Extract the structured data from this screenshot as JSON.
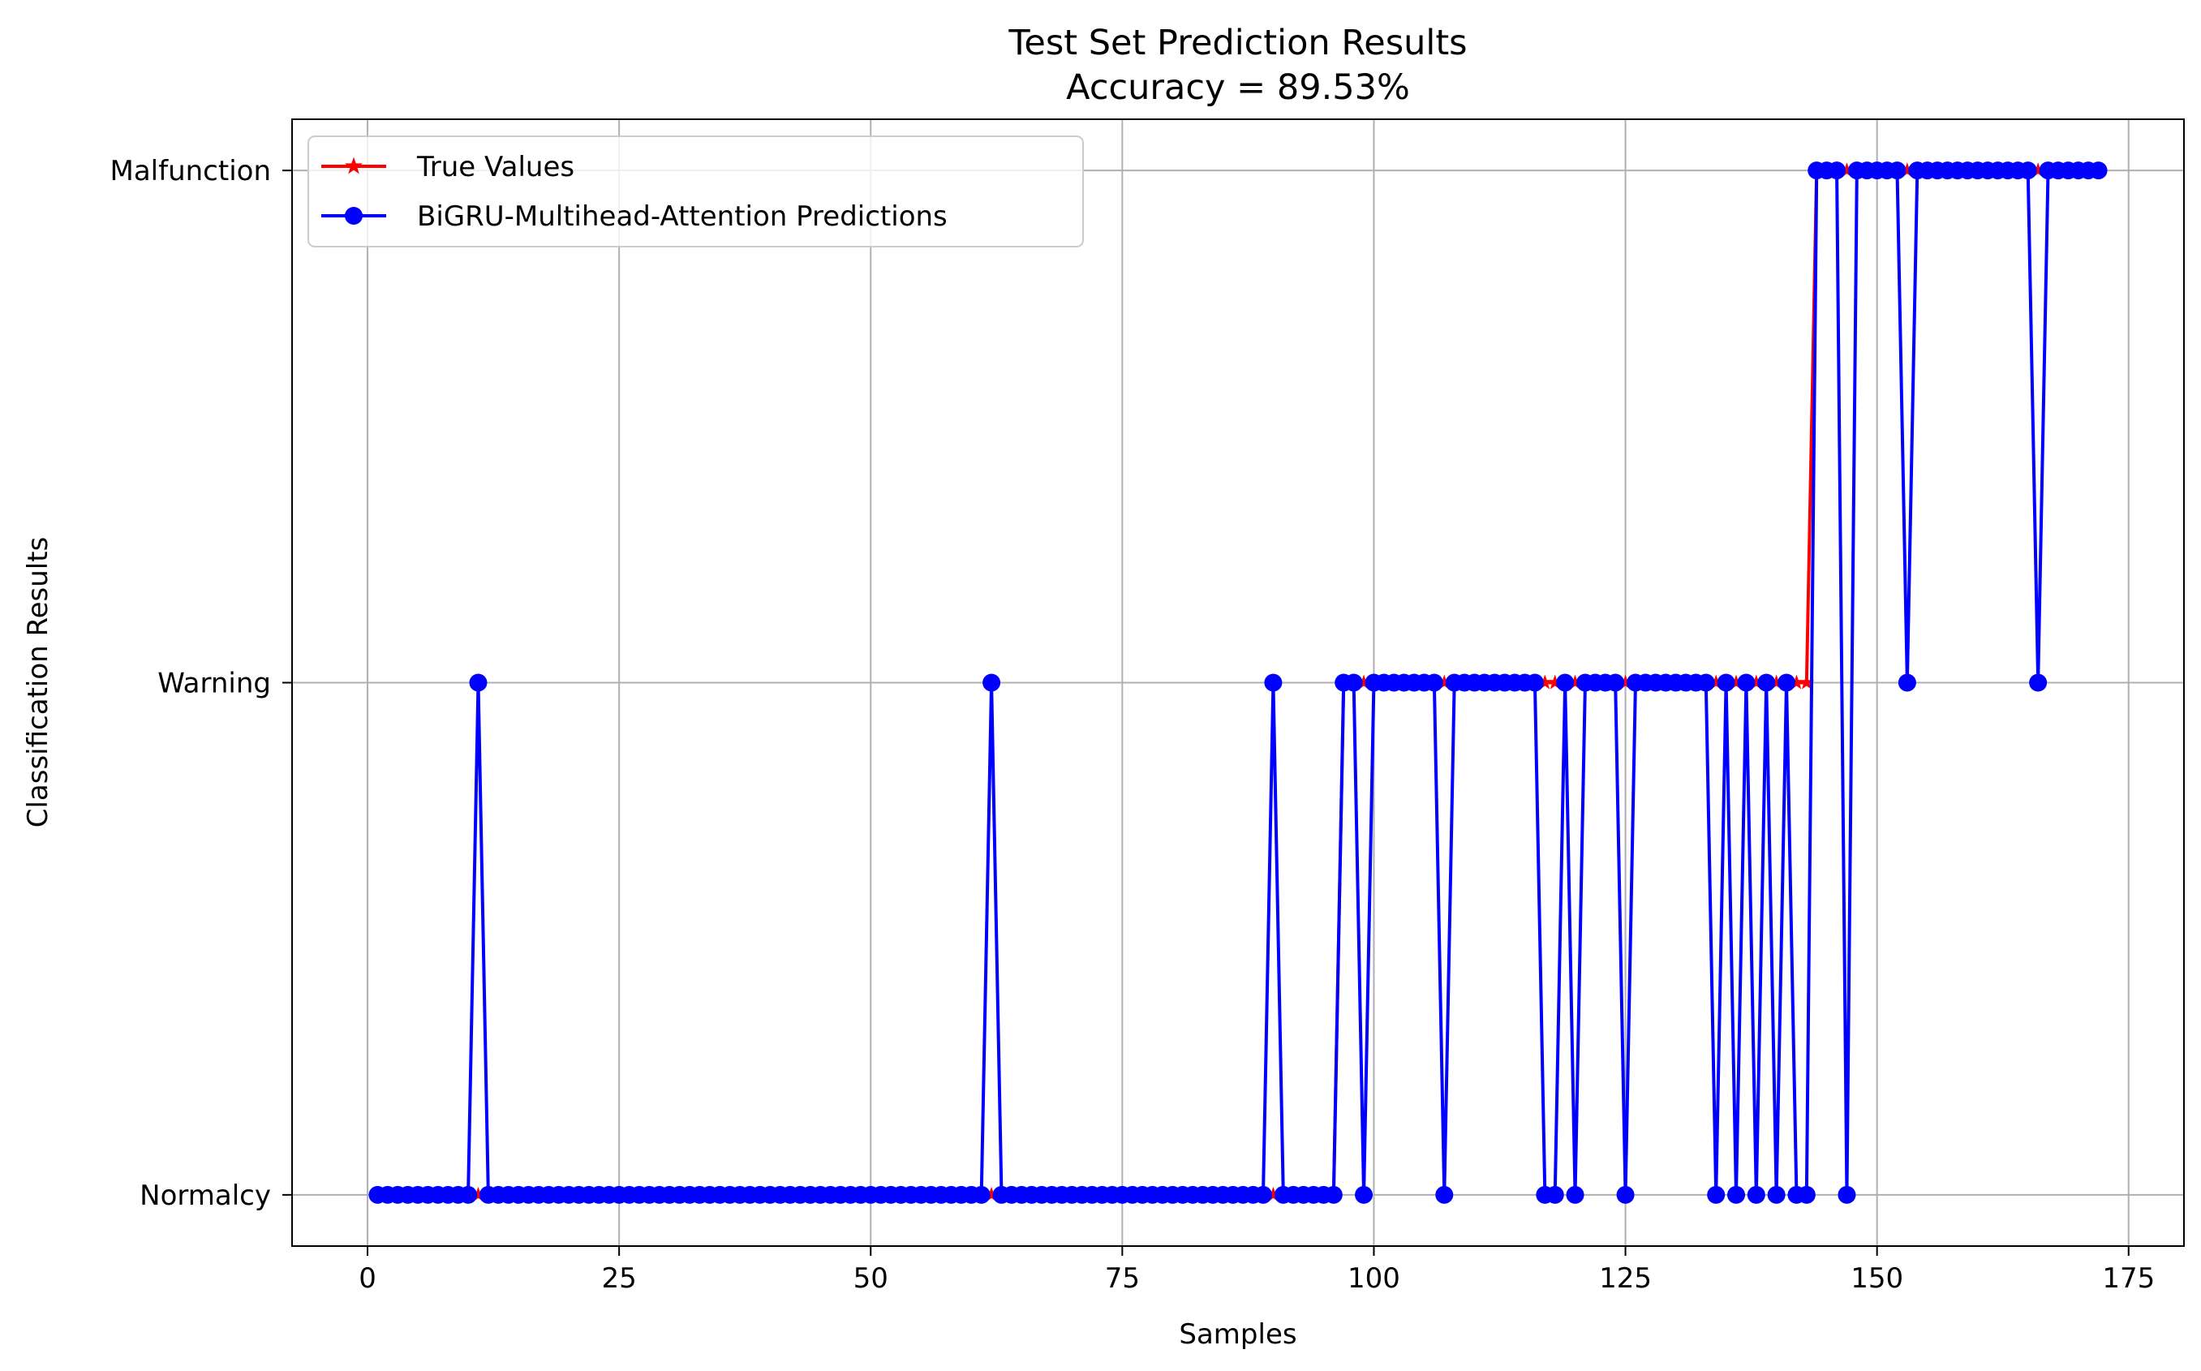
{
  "chart_data": {
    "type": "line",
    "title": "Test Set Prediction Results",
    "subtitle": "Accuracy = 89.53%",
    "xlabel": "Samples",
    "ylabel": "Classification Results",
    "xlim": [
      -7.5,
      180.5
    ],
    "ylim": [
      -0.1,
      2.1
    ],
    "x_ticks": [
      0,
      25,
      50,
      75,
      100,
      125,
      150,
      175
    ],
    "y_ticks": [
      0,
      1,
      2
    ],
    "y_tick_labels": [
      "Normalcy",
      "Warning",
      "Malfunction"
    ],
    "grid": true,
    "legend_position": "top-left",
    "x_start": 1,
    "series": [
      {
        "name": "True Values",
        "color": "#ff0000",
        "marker": "star",
        "values": [
          0,
          0,
          0,
          0,
          0,
          0,
          0,
          0,
          0,
          0,
          0,
          0,
          0,
          0,
          0,
          0,
          0,
          0,
          0,
          0,
          0,
          0,
          0,
          0,
          0,
          0,
          0,
          0,
          0,
          0,
          0,
          0,
          0,
          0,
          0,
          0,
          0,
          0,
          0,
          0,
          0,
          0,
          0,
          0,
          0,
          0,
          0,
          0,
          0,
          0,
          0,
          0,
          0,
          0,
          0,
          0,
          0,
          0,
          0,
          0,
          0,
          0,
          0,
          0,
          0,
          0,
          0,
          0,
          0,
          0,
          0,
          0,
          0,
          0,
          0,
          0,
          0,
          0,
          0,
          0,
          0,
          0,
          0,
          0,
          0,
          0,
          0,
          0,
          0,
          0,
          0,
          0,
          0,
          0,
          0,
          0,
          1,
          1,
          1,
          1,
          1,
          1,
          1,
          1,
          1,
          1,
          1,
          1,
          1,
          1,
          1,
          1,
          1,
          1,
          1,
          1,
          1,
          1,
          1,
          1,
          1,
          1,
          1,
          1,
          1,
          1,
          1,
          1,
          1,
          1,
          1,
          1,
          1,
          1,
          1,
          1,
          1,
          1,
          1,
          1,
          1,
          1,
          1,
          2,
          2,
          2,
          2,
          2,
          2,
          2,
          2,
          2,
          2,
          2,
          2,
          2,
          2,
          2,
          2,
          2,
          2,
          2,
          2,
          2,
          2,
          2,
          2,
          2,
          2,
          2
        ]
      },
      {
        "name": "BiGRU-Multihead-Attention Predictions",
        "color": "#0000ff",
        "marker": "circle",
        "values": [
          0,
          0,
          0,
          0,
          0,
          0,
          0,
          0,
          0,
          0,
          1,
          0,
          0,
          0,
          0,
          0,
          0,
          0,
          0,
          0,
          0,
          0,
          0,
          0,
          0,
          0,
          0,
          0,
          0,
          0,
          0,
          0,
          0,
          0,
          0,
          0,
          0,
          0,
          0,
          0,
          0,
          0,
          0,
          0,
          0,
          0,
          0,
          0,
          0,
          0,
          0,
          0,
          0,
          0,
          0,
          0,
          0,
          0,
          0,
          0,
          0,
          1,
          0,
          0,
          0,
          0,
          0,
          0,
          0,
          0,
          0,
          0,
          0,
          0,
          0,
          0,
          0,
          0,
          0,
          0,
          0,
          0,
          0,
          0,
          0,
          0,
          0,
          0,
          0,
          1,
          0,
          0,
          0,
          0,
          0,
          0,
          1,
          1,
          0,
          1,
          1,
          1,
          1,
          1,
          1,
          1,
          0,
          1,
          1,
          1,
          1,
          1,
          1,
          1,
          1,
          1,
          0,
          0,
          1,
          0,
          1,
          1,
          1,
          1,
          0,
          1,
          1,
          1,
          1,
          1,
          1,
          1,
          1,
          0,
          1,
          0,
          1,
          0,
          1,
          0,
          1,
          0,
          0,
          2,
          2,
          2,
          0,
          2,
          2,
          2,
          2,
          2,
          1,
          2,
          2,
          2,
          2,
          2,
          2,
          2,
          2,
          2,
          2,
          2,
          2,
          1,
          2,
          2,
          2,
          2,
          2,
          2
        ]
      }
    ]
  }
}
